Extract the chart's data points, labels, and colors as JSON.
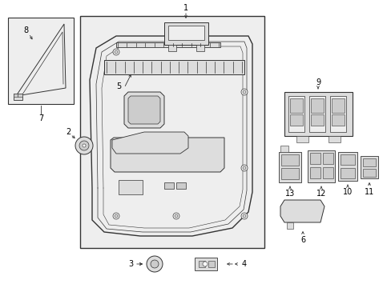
{
  "bg_color": "#ffffff",
  "fig_width": 4.89,
  "fig_height": 3.6,
  "dpi": 100,
  "lc": "#333333",
  "fc_light": "#eeeeee",
  "fc_mid": "#dddddd",
  "fc_dark": "#cccccc",
  "font_size": 7
}
